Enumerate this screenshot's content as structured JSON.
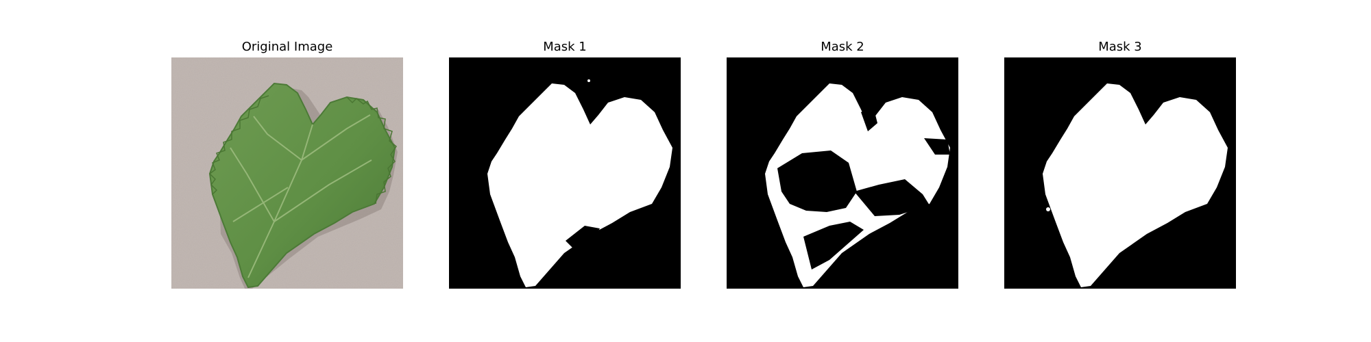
{
  "figure": {
    "panels": [
      {
        "title": "Original Image",
        "kind": "photo",
        "subject": "grape-leaf"
      },
      {
        "title": "Mask 1",
        "kind": "mask"
      },
      {
        "title": "Mask 2",
        "kind": "mask"
      },
      {
        "title": "Mask 3",
        "kind": "mask"
      }
    ]
  },
  "colors": {
    "background": "#c2b8b3",
    "leaf": "#5f8f45",
    "leaf_dark": "#446f31",
    "vein": "#9bbb7d",
    "mask_bg": "#000000",
    "mask_fg": "#ffffff"
  }
}
